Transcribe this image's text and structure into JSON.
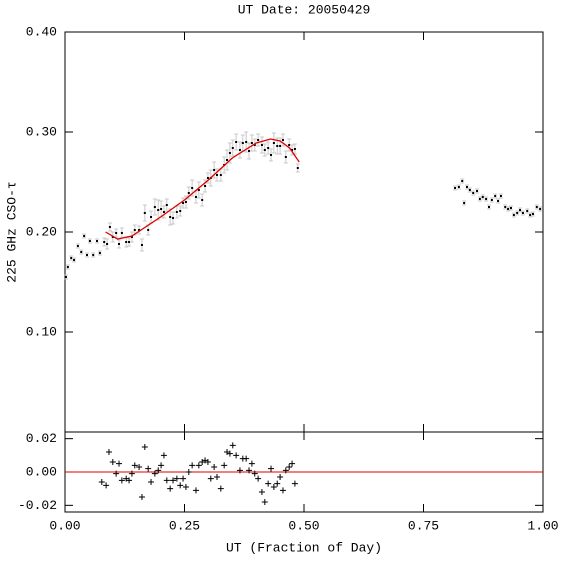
{
  "chart_data": [
    {
      "type": "scatter",
      "title": "UT Date: 20050429",
      "y_label": "225 GHz CSO-τ",
      "xlim": [
        0,
        1
      ],
      "ylim": [
        0,
        0.4
      ],
      "yticks": [
        {
          "value": 0.1,
          "label": "0.10"
        },
        {
          "value": 0.2,
          "label": "0.20"
        },
        {
          "value": 0.3,
          "label": "0.30"
        },
        {
          "value": 0.4,
          "label": "0.40"
        }
      ],
      "series": [
        {
          "style": "points",
          "color": "#000000",
          "error_color": "#c8c8c8",
          "x": [
            0.002,
            0.006,
            0.013,
            0.019,
            0.027,
            0.034,
            0.04,
            0.046,
            0.052,
            0.059,
            0.067,
            0.073,
            0.082,
            0.088,
            0.094,
            0.1,
            0.107,
            0.113,
            0.119,
            0.128,
            0.134,
            0.14,
            0.146,
            0.155,
            0.161,
            0.167,
            0.174,
            0.18,
            0.188,
            0.195,
            0.201,
            0.207,
            0.213,
            0.22,
            0.226,
            0.234,
            0.241,
            0.247,
            0.253,
            0.259,
            0.266,
            0.274,
            0.28,
            0.287,
            0.293,
            0.299,
            0.305,
            0.312,
            0.318,
            0.326,
            0.333,
            0.339,
            0.345,
            0.351,
            0.358,
            0.366,
            0.372,
            0.379,
            0.385,
            0.391,
            0.397,
            0.404,
            0.412,
            0.418,
            0.425,
            0.431,
            0.437,
            0.444,
            0.45,
            0.456,
            0.462,
            0.469,
            0.475,
            0.481,
            0.487,
            0.816,
            0.824,
            0.831,
            0.835,
            0.841,
            0.847,
            0.854,
            0.862,
            0.868,
            0.874,
            0.881,
            0.887,
            0.893,
            0.9,
            0.906,
            0.912,
            0.921,
            0.927,
            0.933,
            0.939,
            0.946,
            0.952,
            0.958,
            0.967,
            0.973,
            0.979,
            0.987,
            0.994
          ],
          "values": [
            0.155,
            0.165,
            0.174,
            0.172,
            0.186,
            0.18,
            0.196,
            0.177,
            0.191,
            0.177,
            0.191,
            0.179,
            0.19,
            0.188,
            0.205,
            0.195,
            0.199,
            0.188,
            0.199,
            0.19,
            0.19,
            0.195,
            0.202,
            0.202,
            0.187,
            0.219,
            0.202,
            0.215,
            0.225,
            0.222,
            0.223,
            0.22,
            0.227,
            0.215,
            0.214,
            0.22,
            0.221,
            0.229,
            0.23,
            0.239,
            0.244,
            0.235,
            0.242,
            0.232,
            0.246,
            0.254,
            0.254,
            0.262,
            0.257,
            0.257,
            0.267,
            0.272,
            0.279,
            0.284,
            0.29,
            0.282,
            0.289,
            0.29,
            0.281,
            0.289,
            0.287,
            0.292,
            0.287,
            0.282,
            0.284,
            0.277,
            0.289,
            0.286,
            0.286,
            0.292,
            0.275,
            0.287,
            0.282,
            0.283,
            0.264,
            0.244,
            0.245,
            0.251,
            0.229,
            0.245,
            0.242,
            0.239,
            0.241,
            0.233,
            0.235,
            0.233,
            0.225,
            0.232,
            0.236,
            0.231,
            0.236,
            0.225,
            0.223,
            0.224,
            0.217,
            0.219,
            0.222,
            0.219,
            0.221,
            0.217,
            0.218,
            0.225,
            0.223
          ],
          "errors": [
            0.002,
            0.002,
            0.002,
            0.002,
            0.002,
            0.002,
            0.002,
            0.002,
            0.002,
            0.002,
            0.002,
            0.002,
            0.004,
            0.005,
            0.004,
            0.005,
            0.004,
            0.004,
            0.005,
            0.005,
            0.004,
            0.005,
            0.005,
            0.004,
            0.006,
            0.008,
            0.005,
            0.006,
            0.008,
            0.01,
            0.008,
            0.006,
            0.006,
            0.008,
            0.006,
            0.006,
            0.005,
            0.005,
            0.006,
            0.006,
            0.008,
            0.006,
            0.008,
            0.006,
            0.006,
            0.005,
            0.008,
            0.008,
            0.006,
            0.006,
            0.008,
            0.01,
            0.01,
            0.008,
            0.008,
            0.008,
            0.008,
            0.01,
            0.008,
            0.008,
            0.006,
            0.006,
            0.008,
            0.006,
            0.006,
            0.006,
            0.01,
            0.008,
            0.008,
            0.006,
            0.006,
            0.006,
            0.005,
            0.005,
            0.004,
            0.002,
            0.002,
            0.002,
            0.002,
            0.002,
            0.002,
            0.002,
            0.002,
            0.002,
            0.002,
            0.002,
            0.002,
            0.002,
            0.002,
            0.002,
            0.002,
            0.002,
            0.002,
            0.002,
            0.002,
            0.002,
            0.002,
            0.002,
            0.002,
            0.002,
            0.002,
            0.002,
            0.002
          ]
        },
        {
          "style": "line",
          "color": "#e00000",
          "x": [
            0.085,
            0.11,
            0.14,
            0.2,
            0.25,
            0.3,
            0.35,
            0.4,
            0.43,
            0.45,
            0.47,
            0.49
          ],
          "values": [
            0.2,
            0.193,
            0.196,
            0.215,
            0.232,
            0.252,
            0.274,
            0.289,
            0.293,
            0.291,
            0.284,
            0.27
          ]
        }
      ]
    },
    {
      "type": "scatter",
      "x_label": "UT (Fraction of Day)",
      "xlim": [
        0,
        1
      ],
      "ylim": [
        -0.024,
        0.024
      ],
      "xticks": [
        {
          "value": 0,
          "label": "0.00"
        },
        {
          "value": 0.25,
          "label": "0.25"
        },
        {
          "value": 0.5,
          "label": "0.50"
        },
        {
          "value": 0.75,
          "label": "0.75"
        },
        {
          "value": 1,
          "label": "1.00"
        }
      ],
      "yticks": [
        {
          "value": -0.02,
          "label": "-0.02"
        },
        {
          "value": 0,
          "label": "0.00"
        },
        {
          "value": 0.02,
          "label": "0.02"
        }
      ],
      "reference_line": {
        "y": 0,
        "color": "#e00000"
      },
      "series": [
        {
          "style": "plus",
          "color": "#000000",
          "x": [
            0.077,
            0.086,
            0.092,
            0.1,
            0.107,
            0.113,
            0.119,
            0.128,
            0.134,
            0.14,
            0.146,
            0.155,
            0.161,
            0.167,
            0.174,
            0.18,
            0.188,
            0.195,
            0.201,
            0.207,
            0.213,
            0.22,
            0.226,
            0.234,
            0.241,
            0.247,
            0.253,
            0.259,
            0.266,
            0.274,
            0.28,
            0.287,
            0.293,
            0.299,
            0.305,
            0.312,
            0.318,
            0.326,
            0.333,
            0.339,
            0.345,
            0.351,
            0.358,
            0.366,
            0.372,
            0.379,
            0.385,
            0.391,
            0.397,
            0.404,
            0.412,
            0.418,
            0.425,
            0.431,
            0.437,
            0.444,
            0.45,
            0.456,
            0.462,
            0.469,
            0.475,
            0.481
          ],
          "values": [
            -0.006,
            -0.008,
            0.012,
            0.006,
            -0.001,
            0.005,
            -0.005,
            -0.004,
            -0.005,
            -0.001,
            0.004,
            0.003,
            -0.015,
            0.015,
            0.002,
            -0.006,
            -0.001,
            0.001,
            0.004,
            0.01,
            -0.005,
            -0.01,
            -0.005,
            -0.004,
            -0.008,
            -0.004,
            -0.009,
            0,
            0.004,
            -0.011,
            0.004,
            0.006,
            0.007,
            0.006,
            -0.004,
            0.003,
            -0.003,
            -0.01,
            0.004,
            0.012,
            0.011,
            0.016,
            0.01,
            0.001,
            0.008,
            0.008,
            0.001,
            0.005,
            -0.001,
            -0.004,
            -0.012,
            -0.018,
            -0.007,
            0.002,
            -0.009,
            -0.007,
            -0.003,
            -0.011,
            0.001,
            0.003,
            0.005,
            -0.007
          ]
        }
      ]
    }
  ]
}
